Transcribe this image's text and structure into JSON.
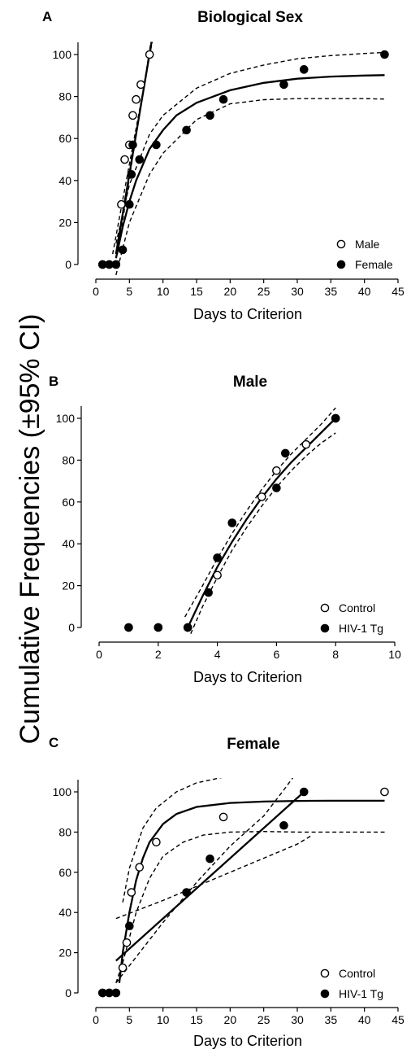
{
  "figure": {
    "shared_ylabel": "Cumulative Frequencies  (±95%  CI)"
  },
  "chart_data": [
    {
      "panel": "A",
      "type": "scatter",
      "title": "Biological Sex",
      "xlabel": "Days to Criterion",
      "ylabel": "Cumulative Frequencies (±95% CI)",
      "xlim": [
        0,
        45
      ],
      "ylim": [
        0,
        100
      ],
      "x_ticks": [
        0,
        5,
        10,
        15,
        20,
        25,
        30,
        35,
        40,
        45
      ],
      "y_ticks": [
        0,
        20,
        40,
        60,
        80,
        100
      ],
      "legend": {
        "position": "bottom-right"
      },
      "series": [
        {
          "name": "Male",
          "marker": "open-circle",
          "points": [
            [
              1,
              0
            ],
            [
              2,
              0
            ],
            [
              3,
              0
            ],
            [
              3.8,
              28.6
            ],
            [
              4.3,
              50
            ],
            [
              5,
              57
            ],
            [
              5.5,
              71
            ],
            [
              6,
              78.6
            ],
            [
              6.7,
              85.7
            ],
            [
              8,
              100
            ]
          ],
          "fit": {
            "curve": [
              [
                3,
                5
              ],
              [
                8.3,
                106
              ]
            ],
            "ci_upper": [
              [
                2.5,
                5
              ],
              [
                8.4,
                106
              ]
            ],
            "ci_lower": [
              [
                3.2,
                5
              ],
              [
                8.2,
                106
              ]
            ]
          }
        },
        {
          "name": "Female",
          "marker": "filled-circle",
          "points": [
            [
              1,
              0
            ],
            [
              2,
              0
            ],
            [
              3,
              0
            ],
            [
              4,
              7
            ],
            [
              5,
              28.6
            ],
            [
              5.3,
              42.9
            ],
            [
              5.5,
              57
            ],
            [
              6.5,
              50
            ],
            [
              9,
              57
            ],
            [
              13.5,
              64
            ],
            [
              17,
              71
            ],
            [
              19,
              78.6
            ],
            [
              28,
              85.7
            ],
            [
              31,
              92.9
            ],
            [
              43,
              100
            ]
          ],
          "fit": {
            "curve": [
              [
                3,
                3
              ],
              [
                4,
                18
              ],
              [
                5,
                30
              ],
              [
                6,
                40
              ],
              [
                8,
                55
              ],
              [
                10,
                64
              ],
              [
                12,
                71
              ],
              [
                15,
                77
              ],
              [
                20,
                83
              ],
              [
                25,
                86.5
              ],
              [
                30,
                88.5
              ],
              [
                35,
                89.5
              ],
              [
                40,
                90
              ],
              [
                43,
                90.2
              ]
            ],
            "ci_upper": [
              [
                3,
                10
              ],
              [
                5,
                38
              ],
              [
                8,
                62
              ],
              [
                10,
                71
              ],
              [
                15,
                84
              ],
              [
                20,
                91
              ],
              [
                25,
                95
              ],
              [
                30,
                98
              ],
              [
                35,
                99.5
              ],
              [
                40,
                100.5
              ],
              [
                43,
                101
              ]
            ],
            "ci_lower": [
              [
                3,
                -5
              ],
              [
                5,
                20
              ],
              [
                8,
                43
              ],
              [
                10,
                53
              ],
              [
                15,
                69
              ],
              [
                20,
                76.5
              ],
              [
                25,
                78.5
              ],
              [
                30,
                79
              ],
              [
                35,
                79
              ],
              [
                40,
                79
              ],
              [
                43,
                78.8
              ]
            ]
          }
        }
      ]
    },
    {
      "panel": "B",
      "type": "scatter",
      "title": "Male",
      "xlabel": "Days to Criterion",
      "ylabel": "Cumulative Frequencies (±95% CI)",
      "xlim": [
        0,
        10
      ],
      "ylim": [
        0,
        100
      ],
      "x_ticks": [
        0,
        2,
        4,
        6,
        8,
        10
      ],
      "y_ticks": [
        0,
        20,
        40,
        60,
        80,
        100
      ],
      "legend": {
        "position": "bottom-right"
      },
      "series": [
        {
          "name": "Control",
          "marker": "open-circle",
          "points": [
            [
              1,
              0
            ],
            [
              2,
              0
            ],
            [
              3,
              0
            ],
            [
              4,
              25
            ],
            [
              4.5,
              50
            ],
            [
              5.5,
              62.5
            ],
            [
              6,
              75
            ],
            [
              7,
              87.5
            ],
            [
              8,
              100
            ]
          ],
          "fit": {
            "curve": [
              [
                3,
                0
              ],
              [
                3.5,
                15
              ],
              [
                4,
                29
              ],
              [
                4.5,
                41
              ],
              [
                5,
                52
              ],
              [
                5.5,
                62
              ],
              [
                6,
                71
              ],
              [
                6.5,
                79
              ],
              [
                7,
                86
              ],
              [
                7.5,
                93
              ],
              [
                8,
                100
              ]
            ],
            "ci_upper": [
              [
                2.9,
                5
              ],
              [
                3.5,
                20
              ],
              [
                4,
                33
              ],
              [
                4.5,
                45
              ],
              [
                5,
                56
              ],
              [
                5.5,
                66
              ],
              [
                6,
                75
              ],
              [
                6.5,
                83
              ],
              [
                7,
                90
              ],
              [
                7.5,
                97
              ],
              [
                8,
                105
              ]
            ],
            "ci_lower": [
              [
                3.1,
                -3
              ],
              [
                3.5,
                10
              ],
              [
                4,
                24
              ],
              [
                4.5,
                37
              ],
              [
                5,
                48
              ],
              [
                5.5,
                58
              ],
              [
                6,
                67
              ],
              [
                6.5,
                75
              ],
              [
                7,
                82
              ],
              [
                7.5,
                88
              ],
              [
                8,
                93
              ]
            ]
          }
        },
        {
          "name": "HIV-1 Tg",
          "marker": "filled-circle",
          "points": [
            [
              1,
              0
            ],
            [
              2,
              0
            ],
            [
              3,
              0
            ],
            [
              3.7,
              16.7
            ],
            [
              4,
              33.3
            ],
            [
              4.5,
              50
            ],
            [
              6,
              66.7
            ],
            [
              6.3,
              83.3
            ],
            [
              8,
              100
            ]
          ]
        }
      ]
    },
    {
      "panel": "C",
      "type": "scatter",
      "title": "Female",
      "xlabel": "Days to Criterion",
      "ylabel": "Cumulative Frequencies (±95% CI)",
      "xlim": [
        0,
        45
      ],
      "ylim": [
        0,
        100
      ],
      "x_ticks": [
        0,
        5,
        10,
        15,
        20,
        25,
        30,
        35,
        40,
        45
      ],
      "y_ticks": [
        0,
        20,
        40,
        60,
        80,
        100
      ],
      "legend": {
        "position": "bottom-right"
      },
      "series": [
        {
          "name": "Control",
          "marker": "open-circle",
          "points": [
            [
              1,
              0
            ],
            [
              2,
              0
            ],
            [
              3,
              0
            ],
            [
              4,
              12.5
            ],
            [
              4.6,
              25
            ],
            [
              5.3,
              50
            ],
            [
              6.5,
              62.5
            ],
            [
              9,
              75
            ],
            [
              19,
              87.5
            ],
            [
              43,
              100
            ]
          ],
          "fit": {
            "curve": [
              [
                3.5,
                5
              ],
              [
                4,
                20
              ],
              [
                5,
                40
              ],
              [
                6,
                56
              ],
              [
                7,
                67
              ],
              [
                8,
                75
              ],
              [
                10,
                84
              ],
              [
                12,
                89
              ],
              [
                15,
                92.5
              ],
              [
                20,
                94.5
              ],
              [
                25,
                95.2
              ],
              [
                30,
                95.5
              ],
              [
                35,
                95.6
              ],
              [
                43,
                95.6
              ]
            ],
            "ci_upper": [
              [
                4,
                45
              ],
              [
                5,
                62
              ],
              [
                7,
                82
              ],
              [
                9,
                92
              ],
              [
                12,
                100
              ],
              [
                15,
                104.5
              ],
              [
                20,
                108
              ],
              [
                24,
                110
              ]
            ],
            "ci_lower": [
              [
                3,
                5
              ],
              [
                4,
                15
              ],
              [
                6,
                40
              ],
              [
                8,
                57
              ],
              [
                10,
                68
              ],
              [
                13,
                75
              ],
              [
                16,
                78.5
              ],
              [
                20,
                80
              ],
              [
                25,
                80.3
              ],
              [
                30,
                80
              ],
              [
                35,
                80
              ],
              [
                43,
                80
              ]
            ]
          }
        },
        {
          "name": "HIV-1 Tg",
          "marker": "filled-circle",
          "points": [
            [
              1,
              0
            ],
            [
              2,
              0
            ],
            [
              3,
              0
            ],
            [
              5,
              33.3
            ],
            [
              13.5,
              50
            ],
            [
              17,
              66.7
            ],
            [
              28,
              83.3
            ],
            [
              31,
              100
            ]
          ],
          "fit": {
            "curve": [
              [
                3,
                16
              ],
              [
                31,
                100
              ]
            ],
            "ci_upper": [
              [
                3,
                5
              ],
              [
                10,
                35
              ],
              [
                15,
                55
              ],
              [
                20,
                73
              ],
              [
                25,
                88
              ],
              [
                28,
                101
              ],
              [
                30,
                110
              ]
            ],
            "ci_lower": [
              [
                3,
                37
              ],
              [
                10,
                46
              ],
              [
                15,
                53
              ],
              [
                20,
                60
              ],
              [
                25,
                67
              ],
              [
                30,
                74
              ],
              [
                32,
                78
              ]
            ]
          }
        }
      ]
    }
  ]
}
